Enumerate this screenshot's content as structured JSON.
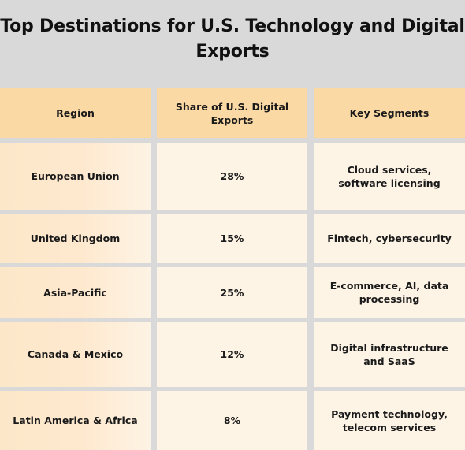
{
  "chart_data": {
    "type": "table",
    "title": "Top Destinations for U.S. Technology and Digital Exports",
    "columns": [
      "Region",
      "Share of U.S. Digital Exports",
      "Key Segments"
    ],
    "rows": [
      [
        "European Union",
        "28%",
        "Cloud services, software licensing"
      ],
      [
        "United Kingdom",
        "15%",
        "Fintech, cybersecurity"
      ],
      [
        "Asia-Pacific",
        "25%",
        "E-commerce, AI, data processing"
      ],
      [
        "Canada & Mexico",
        "12%",
        "Digital infrastructure and SaaS"
      ],
      [
        "Latin America & Africa",
        "8%",
        "Payment technology, telecom services"
      ]
    ]
  },
  "colors": {
    "background": "#d9d9d9",
    "header_fill": "#fbd9a4",
    "cell_fill": "#fef4e6",
    "text": "#1a1a1a"
  }
}
